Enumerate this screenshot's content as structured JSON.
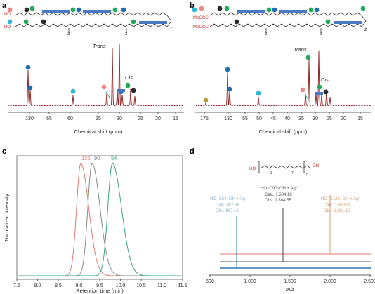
{
  "panels": {
    "a": {
      "label": "a",
      "xlabel": "Chemical shift (ppm)",
      "ticks": [
        "130",
        "65",
        "60",
        "35",
        "30",
        "25",
        "20",
        "15"
      ],
      "annotations": {
        "trans": "Trans",
        "cis": "Cis"
      },
      "structure": {
        "end_groups": [
          "HO",
          "HO"
        ],
        "subscripts": [
          "z",
          "z",
          "z"
        ]
      }
    },
    "b": {
      "label": "b",
      "xlabel": "Chemical shift (ppm)",
      "ticks": [
        "175",
        "130",
        "55",
        "50",
        "45",
        "40",
        "35",
        "30",
        "25",
        "20",
        "15"
      ],
      "annotations": {
        "trans": "Trans",
        "cis": "Cis"
      },
      "structure": {
        "end_groups": [
          "MeOOC",
          "MeOOC"
        ],
        "subscripts": [
          "z",
          "z",
          "z"
        ]
      }
    },
    "c": {
      "label": "c",
      "xlabel": "Retention time (min)",
      "ylabel": "Normalized intensity",
      "peak_labels": [
        {
          "text": "126",
          "color": "#e07a72"
        },
        {
          "text": "90",
          "color": "#8a8a8a"
        },
        {
          "text": "54",
          "color": "#3aa58a"
        }
      ],
      "ticks": [
        "7.5",
        "8.0",
        "8.5",
        "9.0",
        "9.5",
        "10.0",
        "10.5",
        "11.0",
        "11.5"
      ]
    },
    "d": {
      "label": "d",
      "xlabel": "m/z",
      "ticks": [
        "500",
        "1,000",
        "1,500",
        "2,000",
        "2,500"
      ],
      "structure": {
        "left": "HO",
        "right": "OH",
        "subscripts": [
          "3",
          "7",
          "n"
        ]
      },
      "annotations": [
        {
          "line1": "HO−C54−OH + Ag⁺",
          "line2": "Calc. 887.68",
          "line3": "Obs. 887.10",
          "color": "#8fb3c9"
        },
        {
          "line1": "HO−C90−OH + Ag⁺",
          "line2": "Calc. 1,384.18",
          "line3": "Obs. 1,384.55",
          "color": "#555555"
        },
        {
          "line1": "HO−C126−OH + Ag⁺",
          "line2": "Calc. 1,880.68",
          "line3": "Obs. 1,881.10",
          "color": "#d6a07a"
        }
      ]
    }
  },
  "colors": {
    "nmr_line": "#8b1a1a",
    "blue": "#1f6fb2",
    "cyan": "#33b5d6",
    "green": "#22a859",
    "pink": "#e88888",
    "dark": "#2b2b2b",
    "olive": "#b59a3a",
    "bar": "#4a78c4"
  }
}
